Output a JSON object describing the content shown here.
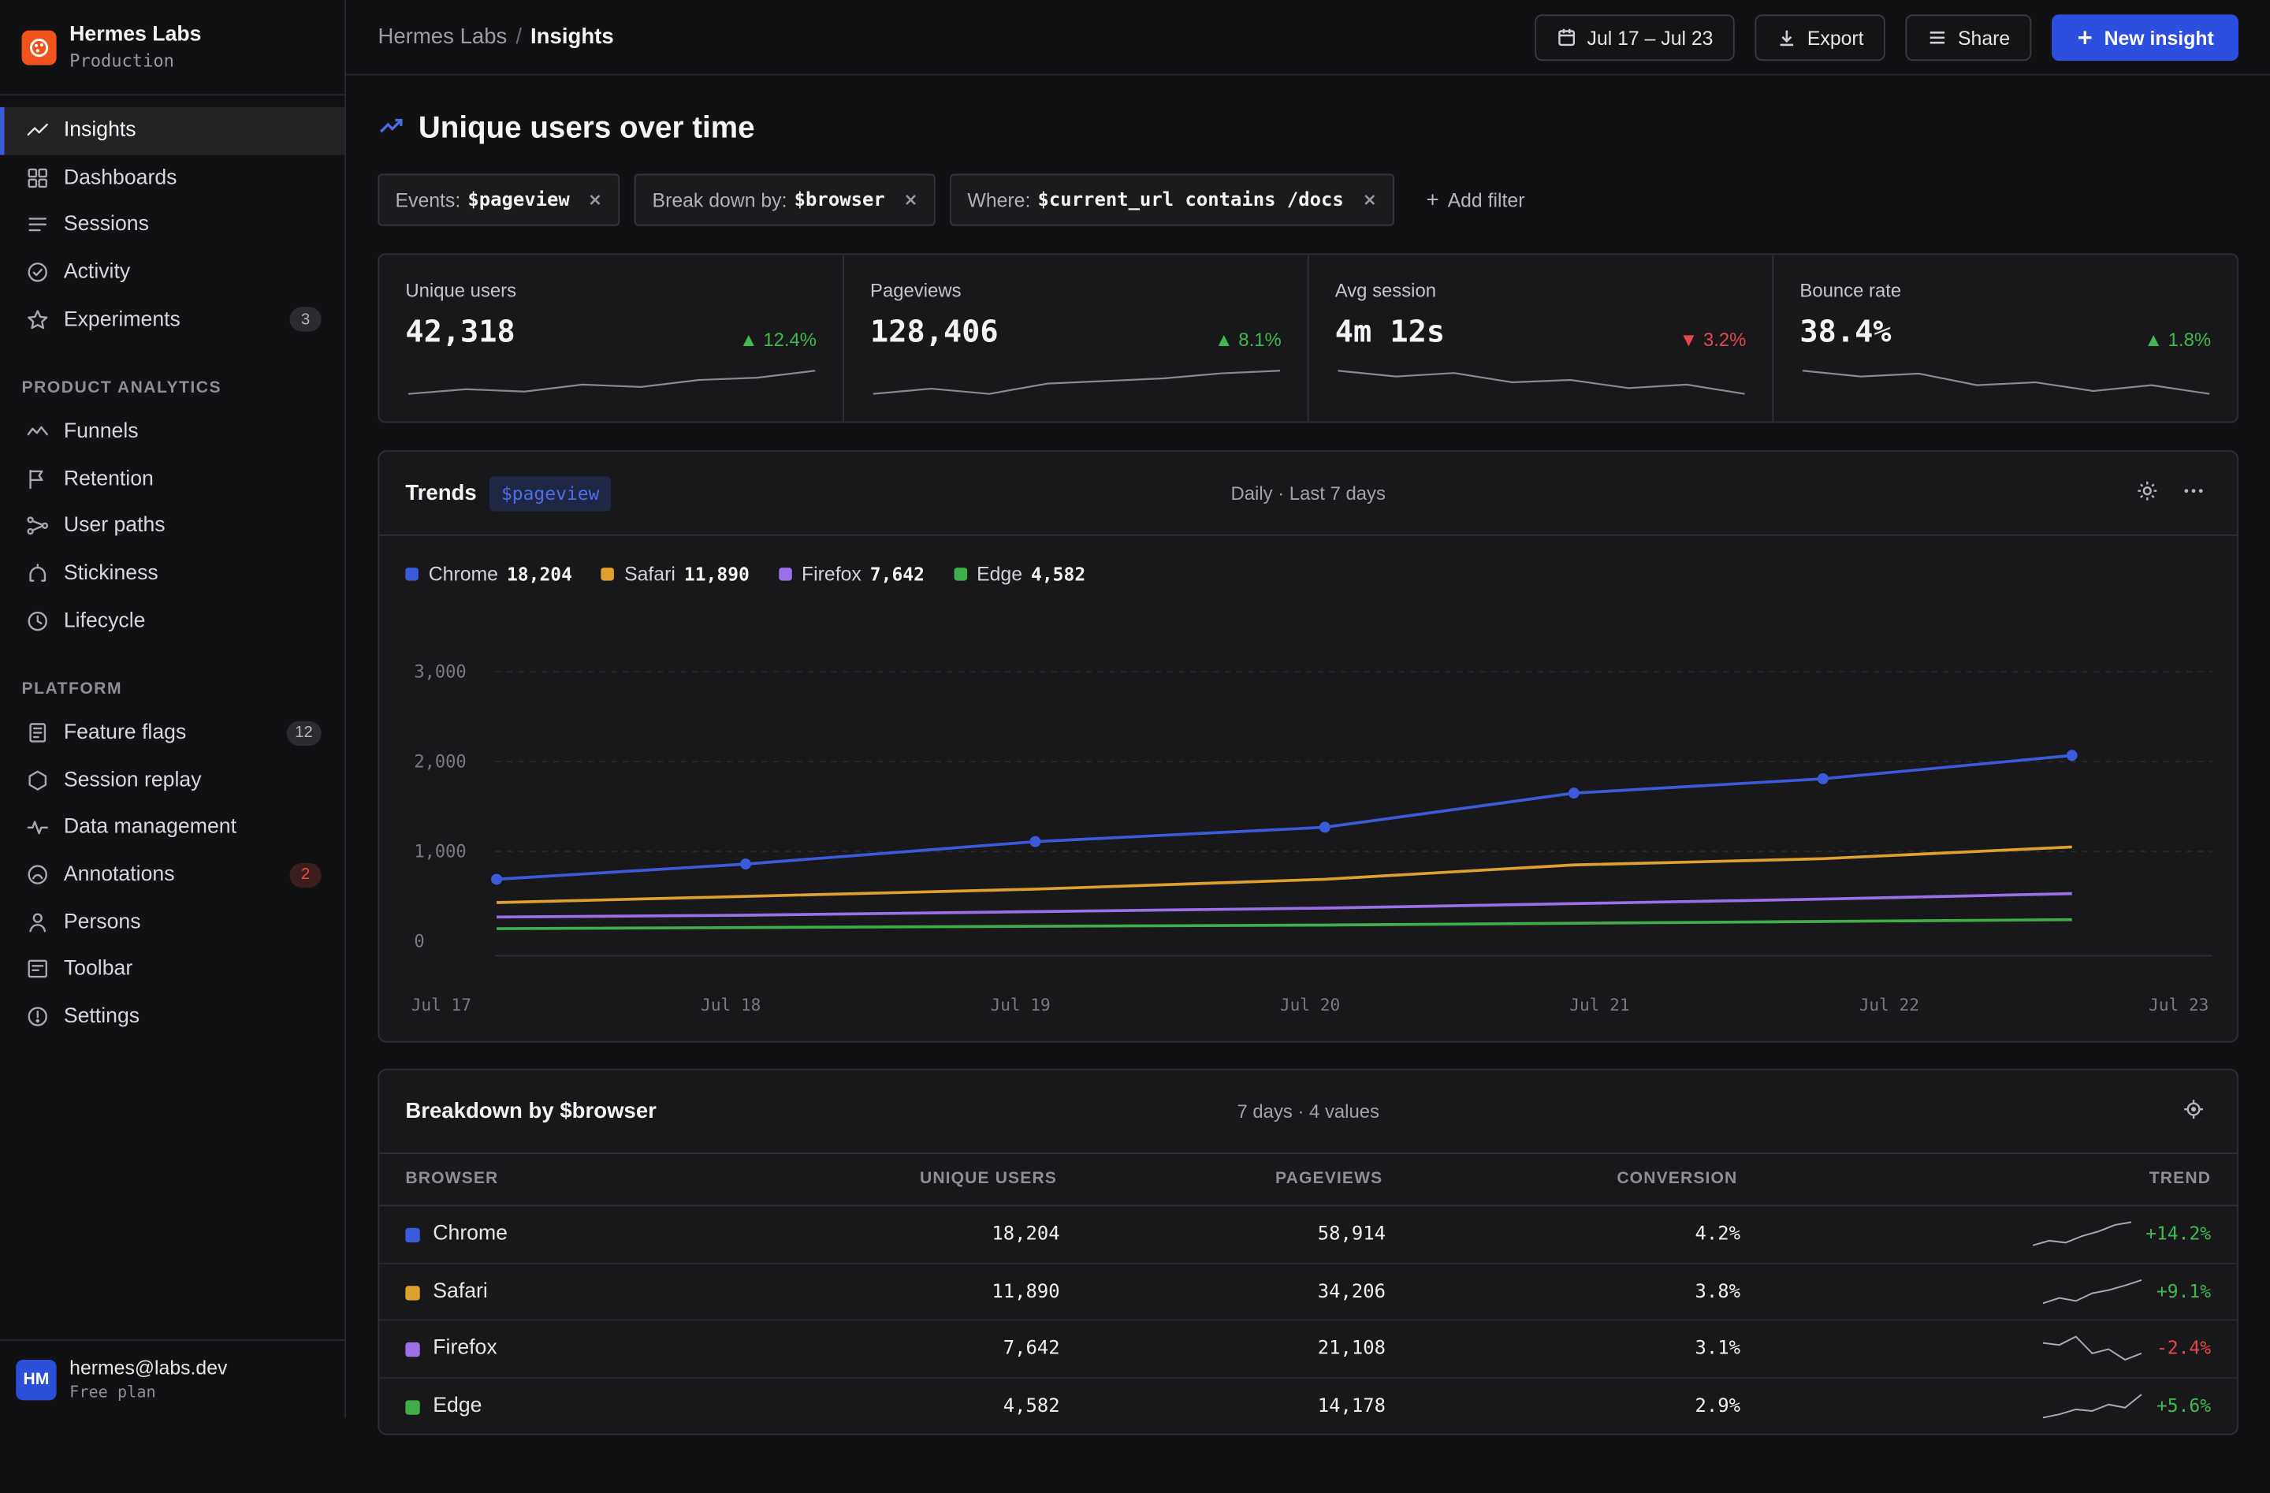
{
  "brand": {
    "name": "Hermes Labs",
    "env": "Production"
  },
  "nav": {
    "main": [
      {
        "label": "Insights",
        "icon": "trend-line-icon",
        "active": true
      },
      {
        "label": "Dashboards",
        "icon": "grid-icon"
      },
      {
        "label": "Sessions",
        "icon": "list-icon"
      },
      {
        "label": "Activity",
        "icon": "check-circle-icon"
      },
      {
        "label": "Experiments",
        "icon": "star-icon",
        "badge": "3"
      }
    ],
    "product_section": "PRODUCT ANALYTICS",
    "product": [
      {
        "label": "Funnels",
        "icon": "funnel-icon"
      },
      {
        "label": "Retention",
        "icon": "flag-icon"
      },
      {
        "label": "User paths",
        "icon": "paths-icon"
      },
      {
        "label": "Stickiness",
        "icon": "stickiness-icon"
      },
      {
        "label": "Lifecycle",
        "icon": "clock-icon"
      }
    ],
    "platform_section": "PLATFORM",
    "platform": [
      {
        "label": "Feature flags",
        "icon": "flag-list-icon",
        "badge": "12"
      },
      {
        "label": "Session replay",
        "icon": "hexagon-icon"
      },
      {
        "label": "Data management",
        "icon": "pulse-icon"
      },
      {
        "label": "Annotations",
        "icon": "annotation-icon",
        "badge": "2",
        "badge_color": "#ef4b4b"
      },
      {
        "label": "Persons",
        "icon": "person-icon"
      },
      {
        "label": "Toolbar",
        "icon": "toolbar-icon"
      },
      {
        "label": "Settings",
        "icon": "settings-icon"
      }
    ]
  },
  "user": {
    "initials": "HM",
    "email": "hermes@labs.dev",
    "plan": "Free plan"
  },
  "breadcrumb": {
    "parent": "Hermes Labs",
    "separator": "/",
    "current": "Insights"
  },
  "actions": {
    "date_range": "Jul 17 – Jul 23",
    "export": "Export",
    "share": "Share",
    "new_insight": "New insight"
  },
  "page_title": "Unique users over time",
  "filters": [
    {
      "label": "Events:",
      "value": "$pageview"
    },
    {
      "label": "Break down by:",
      "value": "$browser"
    },
    {
      "label": "Where:",
      "value": "$current_url contains /docs"
    }
  ],
  "add_filter": "Add filter",
  "stats": [
    {
      "label": "Unique users",
      "value": "42,318",
      "change": "12.4%",
      "direction": "up",
      "spark": [
        3,
        4,
        3.5,
        5,
        4.5,
        6,
        6.5,
        8
      ]
    },
    {
      "label": "Pageviews",
      "value": "128,406",
      "change": "8.1%",
      "direction": "up",
      "spark": [
        3,
        4,
        3,
        5,
        5.5,
        6,
        7,
        7.5
      ]
    },
    {
      "label": "Avg session",
      "value": "4m 12s",
      "change": "3.2%",
      "direction": "down",
      "spark": [
        8,
        7.5,
        7.8,
        7,
        7.2,
        6.5,
        6.8,
        6
      ]
    },
    {
      "label": "Bounce rate",
      "value": "38.4%",
      "change": "1.8%",
      "direction": "up",
      "spark": [
        8,
        7.6,
        7.8,
        7,
        7.2,
        6.6,
        7,
        6.4
      ]
    }
  ],
  "trends": {
    "title": "Trends",
    "event": "$pageview",
    "meta": "Daily · Last 7 days",
    "legend": [
      {
        "name": "Chrome",
        "value": "18,204",
        "color": "#3b5bdb"
      },
      {
        "name": "Safari",
        "value": "11,890",
        "color": "#e0a030"
      },
      {
        "name": "Firefox",
        "value": "7,642",
        "color": "#9a6fe8"
      },
      {
        "name": "Edge",
        "value": "4,582",
        "color": "#3fae48"
      }
    ]
  },
  "chart_data": {
    "type": "line",
    "x": [
      "Jul 17",
      "Jul 18",
      "Jul 19",
      "Jul 20",
      "Jul 21",
      "Jul 22",
      "Jul 23"
    ],
    "y_ticks": [
      "3,000",
      "2,000",
      "1,000",
      "0"
    ],
    "ylim": [
      0,
      3000
    ],
    "grid": true,
    "series": [
      {
        "name": "Chrome",
        "color": "#3b5bdb",
        "points": [
          [
            0,
            690
          ],
          [
            0.86,
            860
          ],
          [
            1.86,
            1110
          ],
          [
            2.86,
            1270
          ],
          [
            3.72,
            1650
          ],
          [
            4.58,
            1810
          ],
          [
            5.44,
            2070
          ]
        ]
      },
      {
        "name": "Safari",
        "color": "#e0a030",
        "points": [
          [
            0,
            430
          ],
          [
            1.86,
            580
          ],
          [
            2.86,
            690
          ],
          [
            3.72,
            850
          ],
          [
            4.58,
            920
          ],
          [
            5.44,
            1050
          ]
        ]
      },
      {
        "name": "Firefox",
        "color": "#9a6fe8",
        "points": [
          [
            0,
            270
          ],
          [
            0.86,
            290
          ],
          [
            2.86,
            370
          ],
          [
            4.58,
            470
          ],
          [
            5.44,
            530
          ]
        ]
      },
      {
        "name": "Edge",
        "color": "#3fae48",
        "points": [
          [
            0,
            140
          ],
          [
            2.86,
            180
          ],
          [
            5.44,
            240
          ]
        ]
      }
    ]
  },
  "breakdown": {
    "title": "Breakdown by $browser",
    "meta": "7 days · 4 values",
    "columns": [
      "BROWSER",
      "UNIQUE USERS",
      "PAGEVIEWS",
      "CONVERSION",
      "TREND"
    ],
    "rows": [
      {
        "browser": "Chrome",
        "color": "#3b5bdb",
        "users": "18,204",
        "pageviews": "58,914",
        "conversion": "4.2%",
        "trend": "+14.2%",
        "dir": "up",
        "spark": [
          2,
          3,
          2.6,
          4,
          5,
          6.4,
          7
        ]
      },
      {
        "browser": "Safari",
        "color": "#e0a030",
        "users": "11,890",
        "pageviews": "34,206",
        "conversion": "3.8%",
        "trend": "+9.1%",
        "dir": "up",
        "spark": [
          2.5,
          3.2,
          2.8,
          3.8,
          4.2,
          4.8,
          5.5
        ]
      },
      {
        "browser": "Firefox",
        "color": "#9a6fe8",
        "users": "7,642",
        "pageviews": "21,108",
        "conversion": "3.1%",
        "trend": "-2.4%",
        "dir": "down",
        "spark": [
          4.5,
          4.4,
          4.8,
          4,
          4.2,
          3.7,
          4
        ]
      },
      {
        "browser": "Edge",
        "color": "#3fae48",
        "users": "4,582",
        "pageviews": "14,178",
        "conversion": "2.9%",
        "trend": "+5.6%",
        "dir": "up",
        "spark": [
          3,
          3.2,
          3.5,
          3.4,
          3.8,
          3.6,
          4.4
        ]
      }
    ]
  }
}
